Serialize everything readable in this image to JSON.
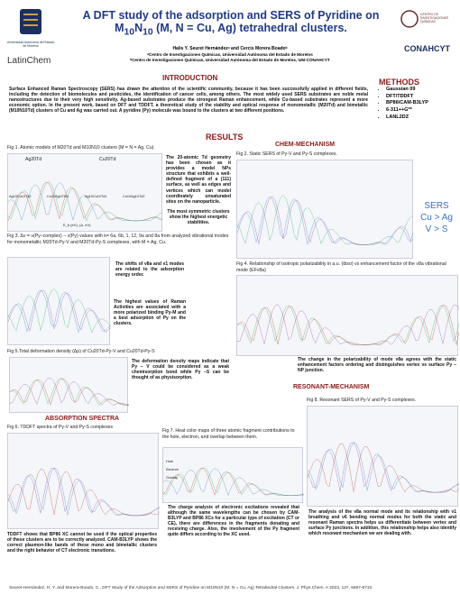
{
  "header": {
    "logo_left": "Universidad Autónoma del Estado de Morelos",
    "logo_latin": "LatinChem",
    "logo_ciq": "CENTRO DE INVESTIGACIONES QUÍMICAS",
    "logo_conahcyt": "CONAHCYT",
    "title": [
      "A DFT study of the adsorption and SERS of Pyridine on M",
      "10",
      "N",
      "10",
      " (M, N = Cu, Ag) tetrahedral clusters."
    ],
    "authors": "Halis Y. Seuret Hernándezᵃ and Cercis Morera Boadoᵇ",
    "affiliations": [
      "ᵃCentro de Investigaciones Químicas, Universidad Autónoma del Estado de Morelos",
      "ᵇCentro de Investigaciones Químicas, Universidad Autónoma del Estado de Morelos, IxM-CONAHCYT"
    ]
  },
  "introduction": {
    "heading": "INTRODUCTION",
    "text": "Surface Enhanced Raman Spectroscopy (SERS) has drawn the attention of the scientific community, because it has been successfully applied in different fields, including the detection of biomolecules and pesticides, the identification of cancer cells, among others. The most widely used SERS substrates are noble metal nanostructures due to their very high sensitivity. Ag-based substrates produce the strongest Raman enhancement, while Cu-based substrates represent a more economic option. In the present work, based on DFT and TDDFT, a theoretical study of the stability and optical response of monometallic (M20Td) and bimetallic (M10N10Td) clusters of Cu and Ag was carried out. A pyridine (Py) molecule was bound to the clusters at two different positions."
  },
  "methods": {
    "heading": "METHODS",
    "items": [
      "Gaussian 09",
      "DFT/TDDFT",
      "BP86/CAM-B3LYP",
      "6-311++G**",
      "LANL2DZ"
    ]
  },
  "results": {
    "heading": "RESULTS",
    "fig1_caption": "Fig 1. Atomic models of M20Td and M10N10 clusters (M = N = Ag, Cu).",
    "fig1_labels": [
      "Ag20Td",
      "Cu20Td",
      "Ag10Cu10Td2",
      "Cu10Ag10Td1",
      "Ag10Cu10Td1",
      "Cu10Ag10Td2",
      "E_b (eV), (Δ, eV)"
    ],
    "text1": "The 20-atomic Td geometry has been chosen as it provides a model NPs structure that exhibits a well-defined fragment of a (111) surface, as well as edges and vertices which can model coordinately unsaturated sites on the nanoparticle.",
    "text2": "The most symmetric clusters show the highest energetic stabilities.",
    "fig3_caption": "Fig 3. Δν = ν(Py–complex) − ν(Py) values with k= 6a, 6b, 1, 12, 9a and 8a from analyzed vibrational modes for monometallic M20Td-Py-V and M20Td-Py-S complexes, with M = Ag, Cu.",
    "text3": "The shifts of ν8a and ν1 modes are related to the adsorption energy order.",
    "text4": "The highest values of Raman Activities are associated with a more polarized binding Py-M and a best adsorption of Py on the clusters.",
    "fig5_caption": "Fig 5.Total deformation density (Δρ) of Cu20Td-Py-V and Cu20Td-Py-S",
    "text5": "The deformation density maps indicate that Py – V could be considered as a weak chemisorption bond while Py –S can be thought of as physisorption."
  },
  "absorption": {
    "heading": "ABSORPTION SPECTRA",
    "fig6_caption": "Fig 6. TDDFT spectra of Py-V and Py-S complexes",
    "text6": "TDDFT shows that BP86 XC cannot be used if the optical properties of these clusters are to be correctly analyzed. CAM-B3LYP shows the correct plasmon-like bands of these mono and bimetallic clusters and the right behavior of CT electronic transitions.",
    "fig7_caption": "Fig 7. Heat color maps of three atomic fragment contributions to the hole, electron, and overlap between them.",
    "fig7_rows": [
      "Hole",
      "Electron",
      "Overlap"
    ],
    "text7": "The charge analysis of electronic excitations revealed that although the same wavelengths can be chosen by CAM-B3LYP and BP86 XCs for a particular type of excitation (CT or CE), there are differences in the fragments donating and receiving charge. Also, the involvement of the Py fragment quite differs according to the XC used."
  },
  "chem": {
    "heading": "CHEM-MECHANISM",
    "fig2_caption": "Fig 2. Static SERS of Py-V and Py-S complexes.",
    "sers_note": [
      "SERS",
      "Cu > Ag",
      "V > S"
    ],
    "fig4_caption": "Fig 4. Relationship of isotropic polarizability in a.u. (ᾱiso) vs enhancement factor of the ν8a vibrational mode (EFν8a)",
    "text4": "The change in the polarizability of mode ν8a agrees with the static enhancement factors ordering and distinguishes vertex vs surface Py – NP junction."
  },
  "resonant": {
    "heading": "RESONANT-MECHANISM",
    "fig8_caption": "Fig 8. Resonant SERS of Py-V and Py-S complexes.",
    "text8": "The analysis of the ν8a normal mode and its relationship with ν1 breathing and ν6 bending normal modes for both the static and resonant Raman spectra helps us differentiate between vertex and surface Py junctions. In addition, this relationship helps also identify which resonant mechanism we are dealing with."
  },
  "footer": "Seuret-Hernández, H. Y. and Morera-Boado, C., DFT Study of the Adsorption and SERS of Pyridine on M10N10 (M, N = Cu, Ag) Tetrahedral Clusters. J. Phys.Chem. A 2023, 127, 6697-6710."
}
